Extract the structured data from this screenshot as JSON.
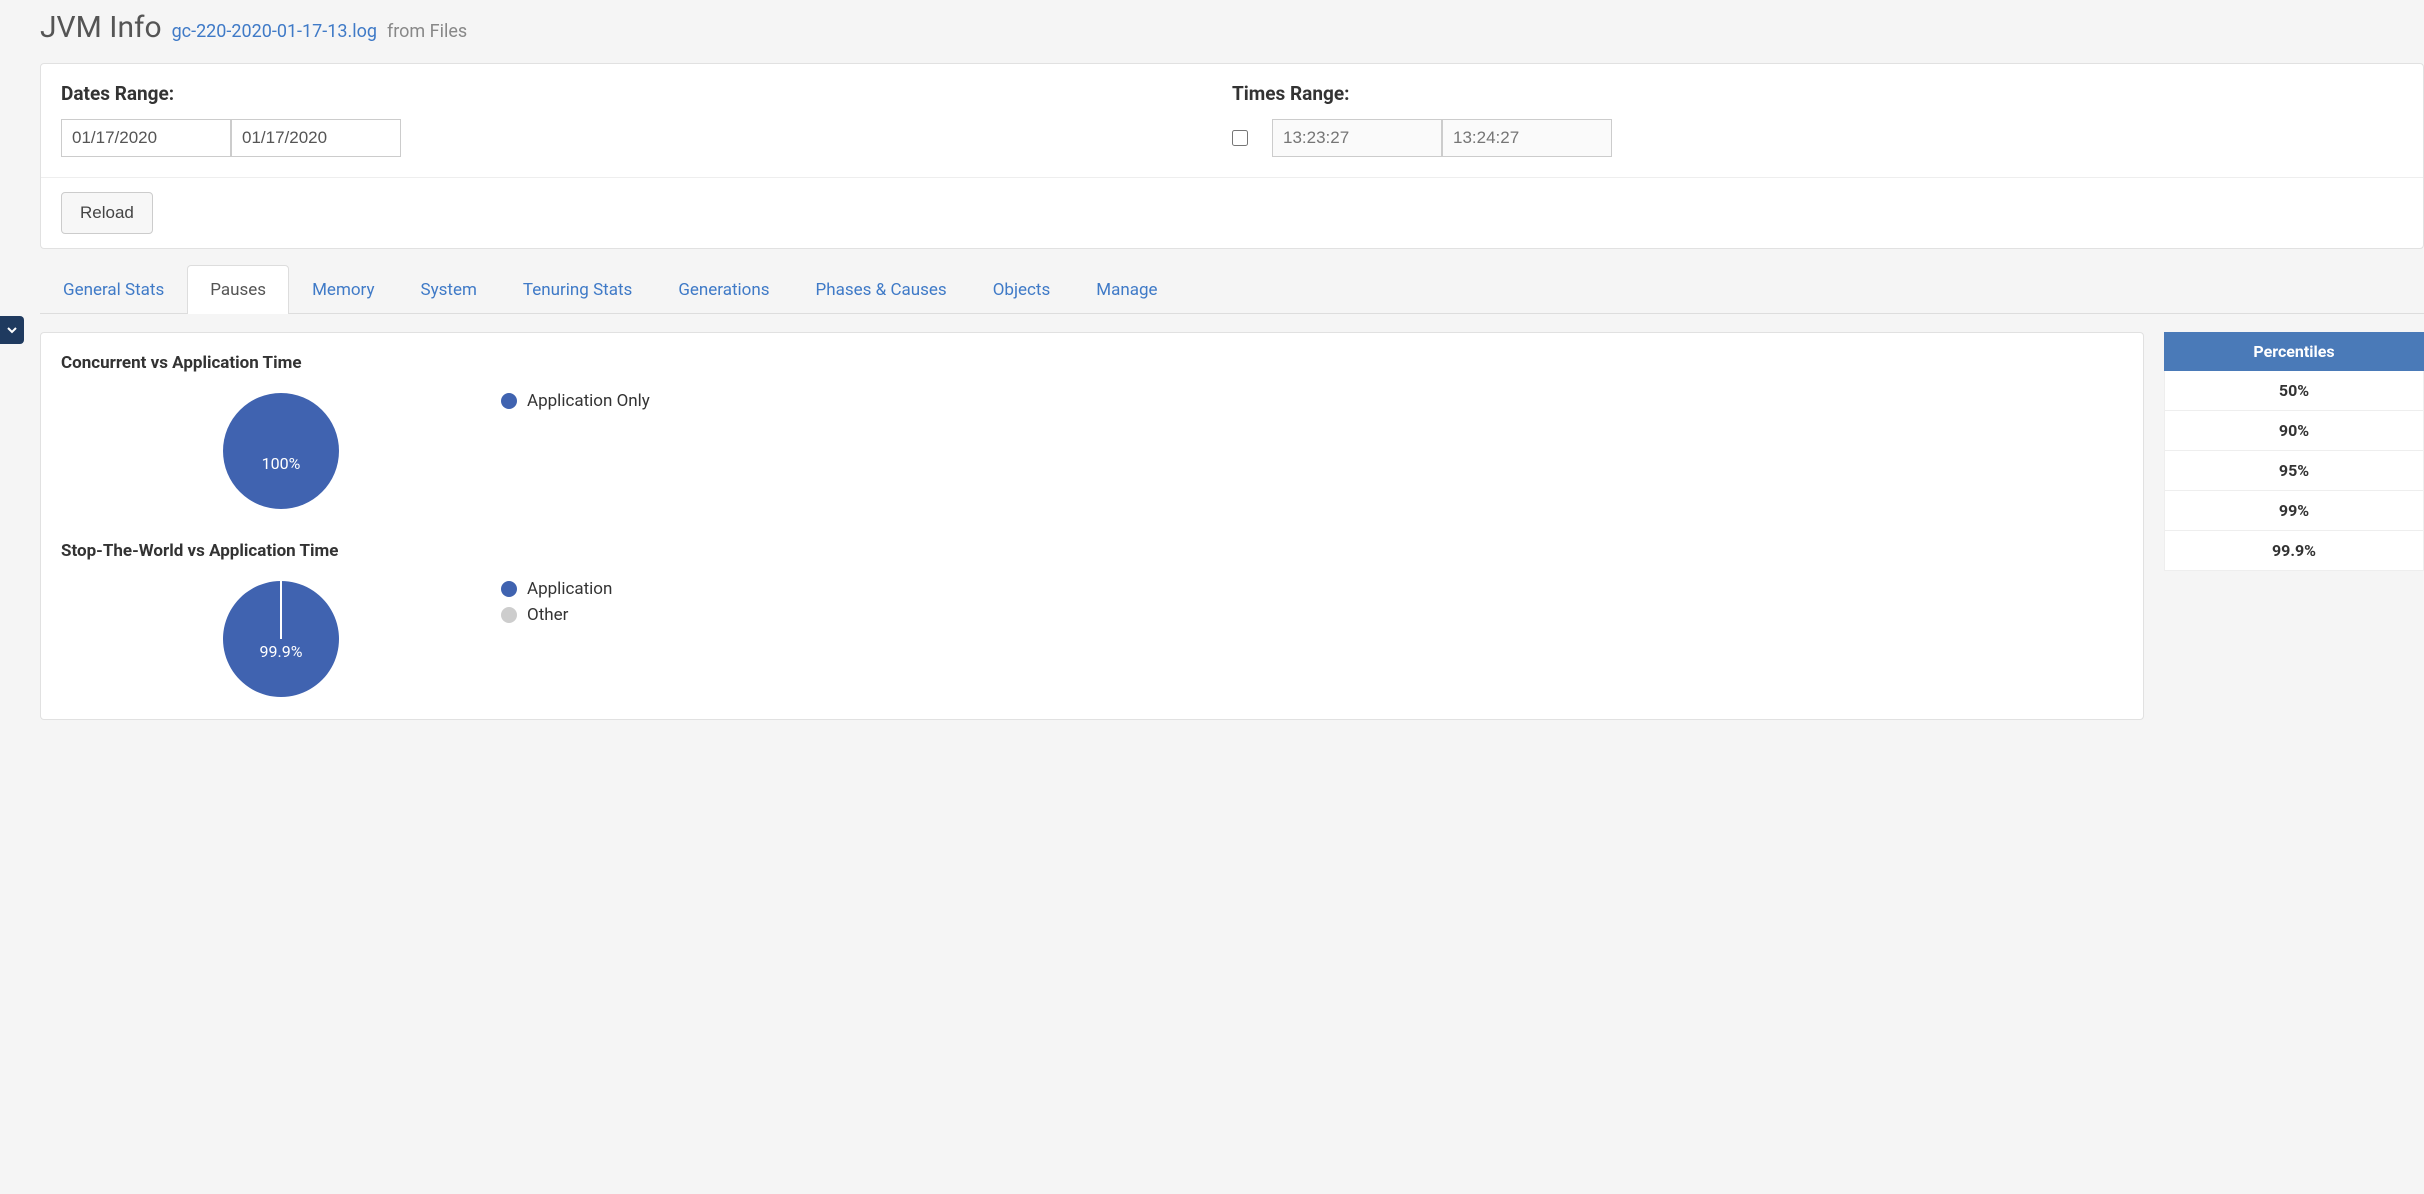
{
  "colors": {
    "primary": "#4063b0",
    "muted": "#cdcdcd",
    "tab_link": "#3f7ac7",
    "table_header_bg": "#4a7ab8"
  },
  "header": {
    "title": "JVM Info",
    "file_name": "gc-220-2020-01-17-13.log",
    "source_suffix": "from Files"
  },
  "filters": {
    "dates_label": "Dates Range:",
    "date_from": "01/17/2020",
    "date_to": "01/17/2020",
    "times_label": "Times Range:",
    "time_enabled": false,
    "time_from_placeholder": "13:23:27",
    "time_to_placeholder": "13:24:27",
    "reload_label": "Reload"
  },
  "tabs": [
    {
      "label": "General Stats",
      "active": false
    },
    {
      "label": "Pauses",
      "active": true
    },
    {
      "label": "Memory",
      "active": false
    },
    {
      "label": "System",
      "active": false
    },
    {
      "label": "Tenuring Stats",
      "active": false
    },
    {
      "label": "Generations",
      "active": false
    },
    {
      "label": "Phases & Causes",
      "active": false
    },
    {
      "label": "Objects",
      "active": false
    },
    {
      "label": "Manage",
      "active": false
    }
  ],
  "charts": {
    "chart1": {
      "type": "pie",
      "title": "Concurrent vs Application Time",
      "radius": 58,
      "slices": [
        {
          "label": "Application Only",
          "value": 100,
          "color": "#4063b0",
          "text": "100%"
        }
      ],
      "legend": [
        {
          "label": "Application Only",
          "color": "#4063b0"
        }
      ]
    },
    "chart2": {
      "type": "pie",
      "title": "Stop-The-World vs Application Time",
      "radius": 58,
      "slices": [
        {
          "label": "Application",
          "value": 99.9,
          "color": "#4063b0",
          "text": "99.9%"
        },
        {
          "label": "Other",
          "value": 0.1,
          "color": "#cdcdcd",
          "text": ""
        }
      ],
      "legend": [
        {
          "label": "Application",
          "color": "#4063b0"
        },
        {
          "label": "Other",
          "color": "#cdcdcd"
        }
      ]
    }
  },
  "percentiles": {
    "header": "Percentiles",
    "rows": [
      "50%",
      "90%",
      "95%",
      "99%",
      "99.9%"
    ]
  }
}
